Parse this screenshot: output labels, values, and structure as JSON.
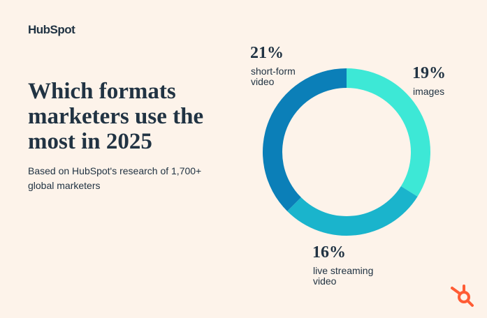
{
  "logo": "HubSpot",
  "chart_data": {
    "type": "donut",
    "title": "Which formats marketers use the most in 2025",
    "subtitle": "Based on HubSpot's research of 1,700+ global marketers",
    "categories": [
      "images",
      "live streaming video",
      "short-form video"
    ],
    "values": [
      19,
      16,
      21
    ],
    "value_labels": [
      "19%",
      "16%",
      "21%"
    ],
    "colors": [
      "#3de8d6",
      "#1ab4cc",
      "#0b7fb8"
    ]
  }
}
